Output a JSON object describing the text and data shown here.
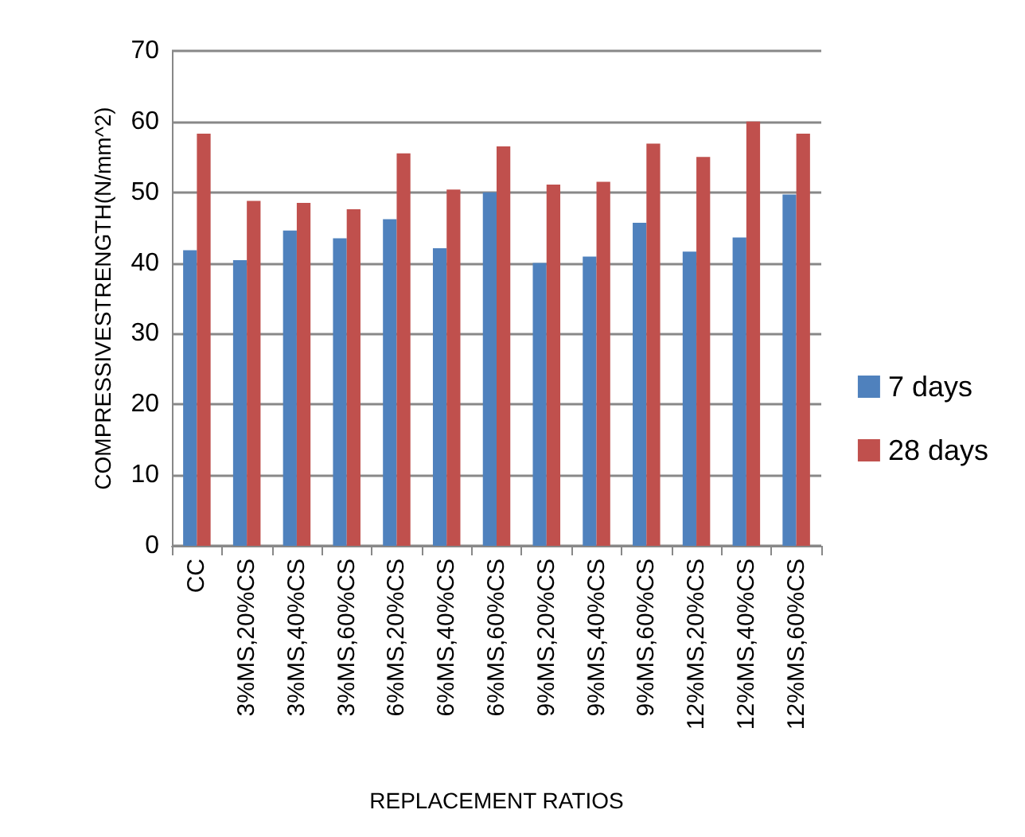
{
  "chart_data": {
    "type": "bar",
    "xlabel": "REPLACEMENT RATIOS",
    "ylabel": "COMPRESSIVESTRENGTH(N/mm^2)",
    "categories": [
      "CC",
      "3%MS,20%CS",
      "3%MS,40%CS",
      "3%MS,60%CS",
      "6%MS,20%CS",
      "6%MS,40%CS",
      "6%MS,60%CS",
      "9%MS,20%CS",
      "9%MS,40%CS",
      "9%MS,60%CS",
      "12%MS,20%CS",
      "12%MS,40%CS",
      "12%MS,60%CS"
    ],
    "series": [
      {
        "name": "7 days",
        "color": "#4f81bd",
        "values": [
          41.8,
          40.4,
          44.6,
          43.5,
          46.2,
          42.1,
          50.0,
          40.0,
          40.9,
          45.7,
          41.6,
          43.6,
          49.7
        ]
      },
      {
        "name": "28 days",
        "color": "#c0504d",
        "values": [
          58.3,
          48.8,
          48.5,
          47.6,
          55.5,
          50.4,
          56.5,
          51.1,
          51.5,
          56.9,
          55.0,
          60.0,
          58.3
        ]
      }
    ],
    "ylim": [
      0,
      70
    ],
    "yticks": [
      0,
      10,
      20,
      30,
      40,
      50,
      60,
      70
    ],
    "grid": "y",
    "legend": "right"
  }
}
